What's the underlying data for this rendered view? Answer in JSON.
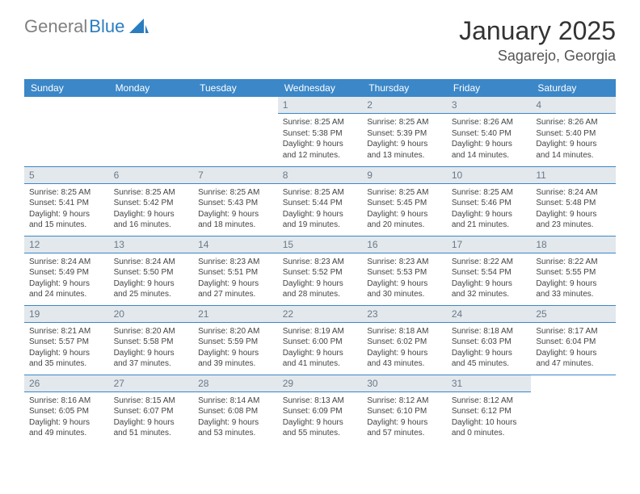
{
  "logo": {
    "gray": "General",
    "blue": "Blue"
  },
  "title": "January 2025",
  "location": "Sagarejo, Georgia",
  "colors": {
    "header_bg": "#3b87c8",
    "header_text": "#ffffff",
    "daynum_bg": "#e3e8ec",
    "daynum_text": "#6a7a88",
    "divider": "#3b87c8",
    "logo_gray": "#808080",
    "logo_blue": "#2a7dc0"
  },
  "dayNames": [
    "Sunday",
    "Monday",
    "Tuesday",
    "Wednesday",
    "Thursday",
    "Friday",
    "Saturday"
  ],
  "weeks": [
    [
      {
        "n": "",
        "sr": "",
        "ss": "",
        "dl": ""
      },
      {
        "n": "",
        "sr": "",
        "ss": "",
        "dl": ""
      },
      {
        "n": "",
        "sr": "",
        "ss": "",
        "dl": ""
      },
      {
        "n": "1",
        "sr": "Sunrise: 8:25 AM",
        "ss": "Sunset: 5:38 PM",
        "dl": "Daylight: 9 hours and 12 minutes."
      },
      {
        "n": "2",
        "sr": "Sunrise: 8:25 AM",
        "ss": "Sunset: 5:39 PM",
        "dl": "Daylight: 9 hours and 13 minutes."
      },
      {
        "n": "3",
        "sr": "Sunrise: 8:26 AM",
        "ss": "Sunset: 5:40 PM",
        "dl": "Daylight: 9 hours and 14 minutes."
      },
      {
        "n": "4",
        "sr": "Sunrise: 8:26 AM",
        "ss": "Sunset: 5:40 PM",
        "dl": "Daylight: 9 hours and 14 minutes."
      }
    ],
    [
      {
        "n": "5",
        "sr": "Sunrise: 8:25 AM",
        "ss": "Sunset: 5:41 PM",
        "dl": "Daylight: 9 hours and 15 minutes."
      },
      {
        "n": "6",
        "sr": "Sunrise: 8:25 AM",
        "ss": "Sunset: 5:42 PM",
        "dl": "Daylight: 9 hours and 16 minutes."
      },
      {
        "n": "7",
        "sr": "Sunrise: 8:25 AM",
        "ss": "Sunset: 5:43 PM",
        "dl": "Daylight: 9 hours and 18 minutes."
      },
      {
        "n": "8",
        "sr": "Sunrise: 8:25 AM",
        "ss": "Sunset: 5:44 PM",
        "dl": "Daylight: 9 hours and 19 minutes."
      },
      {
        "n": "9",
        "sr": "Sunrise: 8:25 AM",
        "ss": "Sunset: 5:45 PM",
        "dl": "Daylight: 9 hours and 20 minutes."
      },
      {
        "n": "10",
        "sr": "Sunrise: 8:25 AM",
        "ss": "Sunset: 5:46 PM",
        "dl": "Daylight: 9 hours and 21 minutes."
      },
      {
        "n": "11",
        "sr": "Sunrise: 8:24 AM",
        "ss": "Sunset: 5:48 PM",
        "dl": "Daylight: 9 hours and 23 minutes."
      }
    ],
    [
      {
        "n": "12",
        "sr": "Sunrise: 8:24 AM",
        "ss": "Sunset: 5:49 PM",
        "dl": "Daylight: 9 hours and 24 minutes."
      },
      {
        "n": "13",
        "sr": "Sunrise: 8:24 AM",
        "ss": "Sunset: 5:50 PM",
        "dl": "Daylight: 9 hours and 25 minutes."
      },
      {
        "n": "14",
        "sr": "Sunrise: 8:23 AM",
        "ss": "Sunset: 5:51 PM",
        "dl": "Daylight: 9 hours and 27 minutes."
      },
      {
        "n": "15",
        "sr": "Sunrise: 8:23 AM",
        "ss": "Sunset: 5:52 PM",
        "dl": "Daylight: 9 hours and 28 minutes."
      },
      {
        "n": "16",
        "sr": "Sunrise: 8:23 AM",
        "ss": "Sunset: 5:53 PM",
        "dl": "Daylight: 9 hours and 30 minutes."
      },
      {
        "n": "17",
        "sr": "Sunrise: 8:22 AM",
        "ss": "Sunset: 5:54 PM",
        "dl": "Daylight: 9 hours and 32 minutes."
      },
      {
        "n": "18",
        "sr": "Sunrise: 8:22 AM",
        "ss": "Sunset: 5:55 PM",
        "dl": "Daylight: 9 hours and 33 minutes."
      }
    ],
    [
      {
        "n": "19",
        "sr": "Sunrise: 8:21 AM",
        "ss": "Sunset: 5:57 PM",
        "dl": "Daylight: 9 hours and 35 minutes."
      },
      {
        "n": "20",
        "sr": "Sunrise: 8:20 AM",
        "ss": "Sunset: 5:58 PM",
        "dl": "Daylight: 9 hours and 37 minutes."
      },
      {
        "n": "21",
        "sr": "Sunrise: 8:20 AM",
        "ss": "Sunset: 5:59 PM",
        "dl": "Daylight: 9 hours and 39 minutes."
      },
      {
        "n": "22",
        "sr": "Sunrise: 8:19 AM",
        "ss": "Sunset: 6:00 PM",
        "dl": "Daylight: 9 hours and 41 minutes."
      },
      {
        "n": "23",
        "sr": "Sunrise: 8:18 AM",
        "ss": "Sunset: 6:02 PM",
        "dl": "Daylight: 9 hours and 43 minutes."
      },
      {
        "n": "24",
        "sr": "Sunrise: 8:18 AM",
        "ss": "Sunset: 6:03 PM",
        "dl": "Daylight: 9 hours and 45 minutes."
      },
      {
        "n": "25",
        "sr": "Sunrise: 8:17 AM",
        "ss": "Sunset: 6:04 PM",
        "dl": "Daylight: 9 hours and 47 minutes."
      }
    ],
    [
      {
        "n": "26",
        "sr": "Sunrise: 8:16 AM",
        "ss": "Sunset: 6:05 PM",
        "dl": "Daylight: 9 hours and 49 minutes."
      },
      {
        "n": "27",
        "sr": "Sunrise: 8:15 AM",
        "ss": "Sunset: 6:07 PM",
        "dl": "Daylight: 9 hours and 51 minutes."
      },
      {
        "n": "28",
        "sr": "Sunrise: 8:14 AM",
        "ss": "Sunset: 6:08 PM",
        "dl": "Daylight: 9 hours and 53 minutes."
      },
      {
        "n": "29",
        "sr": "Sunrise: 8:13 AM",
        "ss": "Sunset: 6:09 PM",
        "dl": "Daylight: 9 hours and 55 minutes."
      },
      {
        "n": "30",
        "sr": "Sunrise: 8:12 AM",
        "ss": "Sunset: 6:10 PM",
        "dl": "Daylight: 9 hours and 57 minutes."
      },
      {
        "n": "31",
        "sr": "Sunrise: 8:12 AM",
        "ss": "Sunset: 6:12 PM",
        "dl": "Daylight: 10 hours and 0 minutes."
      },
      {
        "n": "",
        "sr": "",
        "ss": "",
        "dl": ""
      }
    ]
  ]
}
